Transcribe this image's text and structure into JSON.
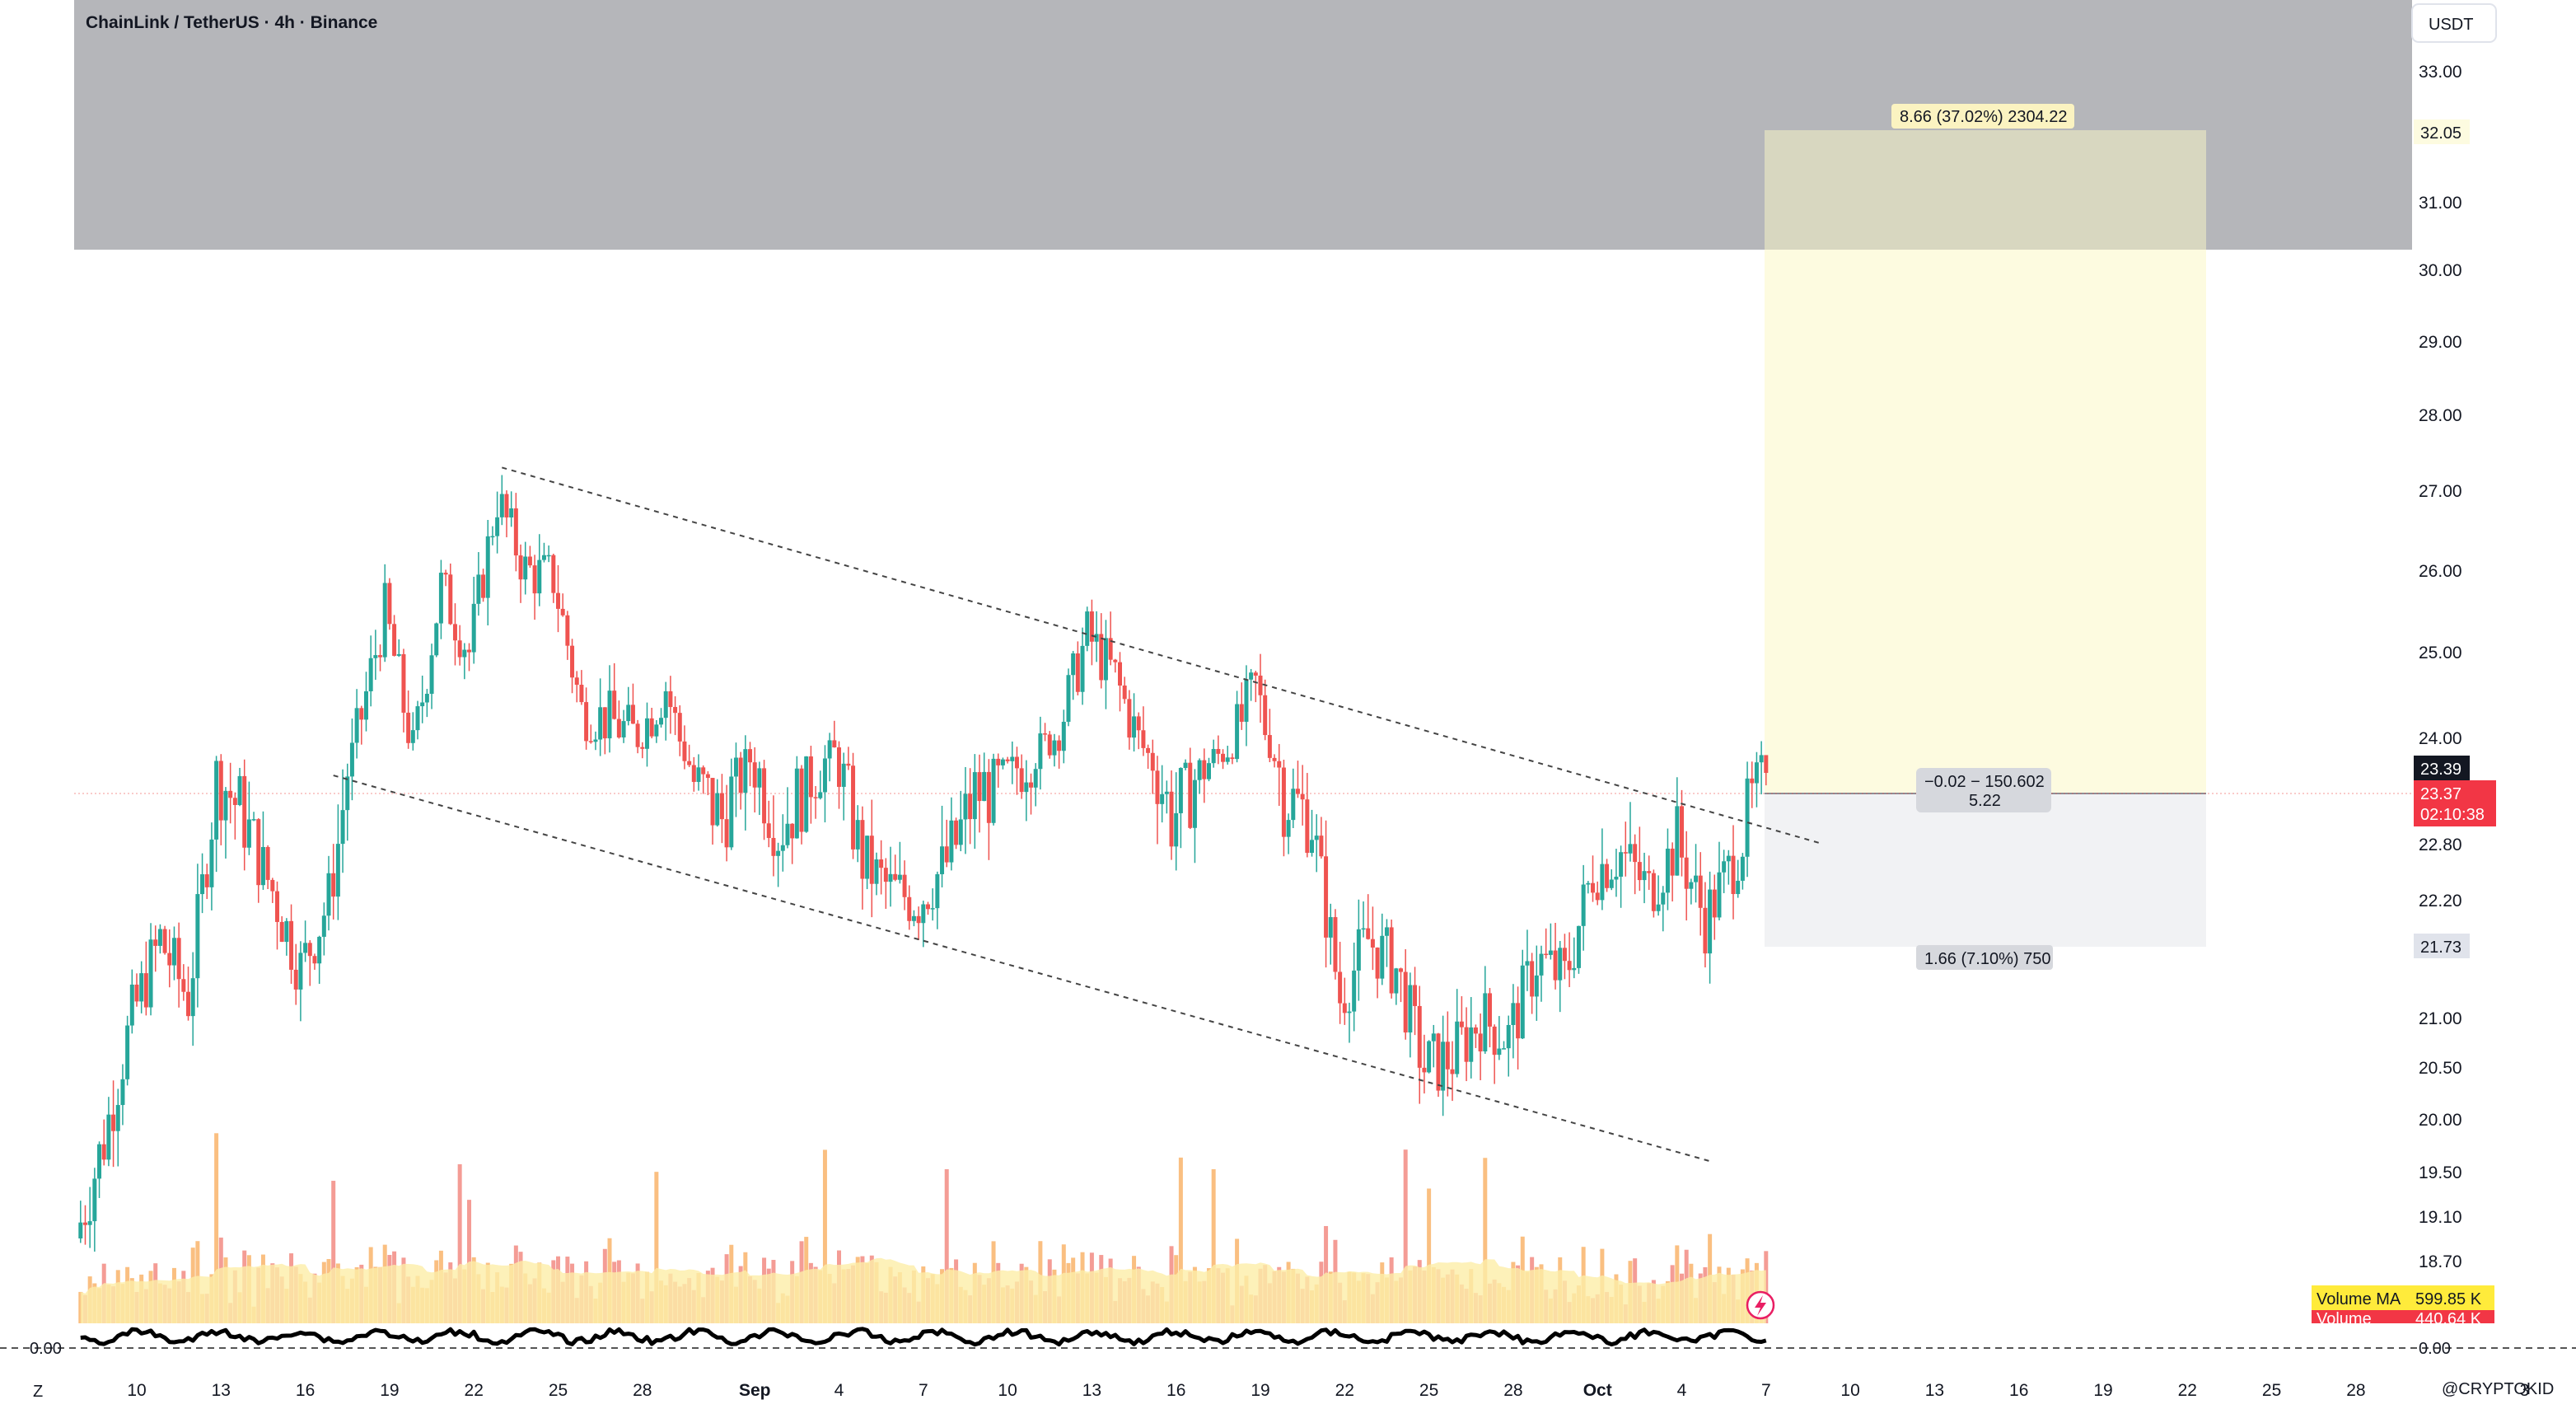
{
  "header": {
    "title": "ChainLink / TetherUS · 4h · Binance"
  },
  "price_scale": {
    "currency_button": "USDT"
  },
  "price_labels": {
    "target": "32.05",
    "last_a": "23.39",
    "last_b": "23.37",
    "countdown": "02:10:38",
    "stop": "21.73"
  },
  "position_tool": {
    "target_text": "8.66 (37.02%) 2304.22",
    "entry_text_1": "−0.02 − 150.602",
    "entry_text_2": "5.22",
    "stop_text": "1.66 (7.10%) 750"
  },
  "volume": {
    "ma_label": "Volume MA",
    "ma_value": "599.85 K",
    "vol_label": "Volume",
    "vol_value": "440.64 K"
  },
  "oscillator": {
    "left_value": "0.00",
    "right_value": "0.00"
  },
  "bottom_left_marker": "Z",
  "watermark": "@CRYPTOKID",
  "colors": {
    "up": "#26a69a",
    "down": "#ef5350",
    "grey_zone": "#b5b6ba",
    "target_zone": "#fdfbe0",
    "stop_zone": "#f1f2f4",
    "volume_ma": "#fdeea8"
  },
  "chart_data": {
    "type": "candlestick",
    "symbol": "ChainLink / TetherUS",
    "interval": "4h",
    "exchange": "Binance",
    "y_unit": "USDT",
    "y_ticks": [
      33.0,
      32.05,
      31.0,
      30.0,
      29.0,
      28.0,
      27.0,
      26.0,
      25.0,
      24.0,
      23.39,
      22.8,
      22.2,
      21.73,
      21.0,
      20.5,
      20.0,
      19.5,
      19.1,
      18.7,
      0.0
    ],
    "y_tick_labels": [
      "33.00",
      "32.05",
      "31.00",
      "30.00",
      "29.00",
      "28.00",
      "27.00",
      "26.00",
      "25.00",
      "24.00",
      "23.39",
      "22.80",
      "22.20",
      "21.73",
      "21.00",
      "20.50",
      "20.00",
      "19.50",
      "19.10",
      "18.70",
      "0.00"
    ],
    "x_tick_labels": [
      "10",
      "13",
      "16",
      "19",
      "22",
      "25",
      "28",
      "Sep",
      "4",
      "7",
      "10",
      "13",
      "16",
      "19",
      "22",
      "25",
      "28",
      "Oct",
      "4",
      "7",
      "10",
      "13",
      "16",
      "19",
      "22",
      "25",
      "28",
      "3"
    ],
    "x_tick_dates": [
      "Aug 10",
      "Aug 13",
      "Aug 16",
      "Aug 19",
      "Aug 22",
      "Aug 25",
      "Aug 28",
      "Sep 1",
      "Sep 4",
      "Sep 7",
      "Sep 10",
      "Sep 13",
      "Sep 16",
      "Sep 19",
      "Sep 22",
      "Sep 25",
      "Sep 28",
      "Oct 1",
      "Oct 4",
      "Oct 7",
      "Oct 10",
      "Oct 13",
      "Oct 16",
      "Oct 19",
      "Oct 22",
      "Oct 25",
      "Oct 28",
      "Nov 3"
    ],
    "price_path_daily": [
      {
        "date": "Aug 8",
        "close": 18.9
      },
      {
        "date": "Aug 9",
        "close": 19.8
      },
      {
        "date": "Aug 10",
        "close": 21.0
      },
      {
        "date": "Aug 11",
        "close": 21.8
      },
      {
        "date": "Aug 12",
        "close": 21.2
      },
      {
        "date": "Aug 13",
        "close": 23.4
      },
      {
        "date": "Aug 14",
        "close": 23.0
      },
      {
        "date": "Aug 15",
        "close": 22.3
      },
      {
        "date": "Aug 16",
        "close": 21.5
      },
      {
        "date": "Aug 17",
        "close": 22.2
      },
      {
        "date": "Aug 18",
        "close": 24.0
      },
      {
        "date": "Aug 19",
        "close": 25.5
      },
      {
        "date": "Aug 20",
        "close": 23.8
      },
      {
        "date": "Aug 21",
        "close": 25.8
      },
      {
        "date": "Aug 22",
        "close": 25.0
      },
      {
        "date": "Aug 23",
        "close": 26.9
      },
      {
        "date": "Aug 24",
        "close": 26.0
      },
      {
        "date": "Aug 25",
        "close": 25.9
      },
      {
        "date": "Aug 26",
        "close": 24.3
      },
      {
        "date": "Aug 27",
        "close": 24.2
      },
      {
        "date": "Aug 28",
        "close": 24.0
      },
      {
        "date": "Aug 29",
        "close": 24.6
      },
      {
        "date": "Aug 30",
        "close": 23.3
      },
      {
        "date": "Aug 31",
        "close": 23.0
      },
      {
        "date": "Sep 1",
        "close": 23.6
      },
      {
        "date": "Sep 2",
        "close": 22.9
      },
      {
        "date": "Sep 3",
        "close": 23.3
      },
      {
        "date": "Sep 4",
        "close": 23.7
      },
      {
        "date": "Sep 5",
        "close": 22.6
      },
      {
        "date": "Sep 6",
        "close": 22.3
      },
      {
        "date": "Sep 7",
        "close": 22.2
      },
      {
        "date": "Sep 8",
        "close": 22.6
      },
      {
        "date": "Sep 9",
        "close": 23.2
      },
      {
        "date": "Sep 10",
        "close": 23.3
      },
      {
        "date": "Sep 11",
        "close": 23.6
      },
      {
        "date": "Sep 12",
        "close": 24.1
      },
      {
        "date": "Sep 13",
        "close": 25.2
      },
      {
        "date": "Sep 14",
        "close": 24.7
      },
      {
        "date": "Sep 15",
        "close": 23.8
      },
      {
        "date": "Sep 16",
        "close": 23.0
      },
      {
        "date": "Sep 17",
        "close": 23.4
      },
      {
        "date": "Sep 18",
        "close": 23.8
      },
      {
        "date": "Sep 19",
        "close": 24.6
      },
      {
        "date": "Sep 20",
        "close": 23.2
      },
      {
        "date": "Sep 21",
        "close": 23.0
      },
      {
        "date": "Sep 22",
        "close": 21.2
      },
      {
        "date": "Sep 23",
        "close": 21.8
      },
      {
        "date": "Sep 24",
        "close": 21.5
      },
      {
        "date": "Sep 25",
        "close": 20.5
      },
      {
        "date": "Sep 26",
        "close": 20.6
      },
      {
        "date": "Sep 27",
        "close": 21.0
      },
      {
        "date": "Sep 28",
        "close": 20.8
      },
      {
        "date": "Sep 29",
        "close": 21.6
      },
      {
        "date": "Sep 30",
        "close": 21.4
      },
      {
        "date": "Oct 1",
        "close": 22.5
      },
      {
        "date": "Oct 2",
        "close": 22.7
      },
      {
        "date": "Oct 3",
        "close": 22.3
      },
      {
        "date": "Oct 4",
        "close": 22.8
      },
      {
        "date": "Oct 5",
        "close": 22.0
      },
      {
        "date": "Oct 6",
        "close": 22.6
      },
      {
        "date": "Oct 7",
        "close": 23.37
      }
    ],
    "annotations": [
      {
        "type": "trendline",
        "style": "dashed",
        "from": {
          "date": "Aug 23",
          "price": 27.3
        },
        "to": {
          "date": "Oct 9",
          "price": 22.8
        }
      },
      {
        "type": "trendline",
        "style": "dashed",
        "from": {
          "date": "Aug 17",
          "price": 23.35
        },
        "to": {
          "date": "Oct 5",
          "price": 19.6
        }
      },
      {
        "type": "long_position",
        "entry": 23.39,
        "target": 32.05,
        "stop": 21.73
      },
      {
        "type": "zone",
        "from_price": 30.3,
        "to_price": 33.9
      }
    ]
  }
}
